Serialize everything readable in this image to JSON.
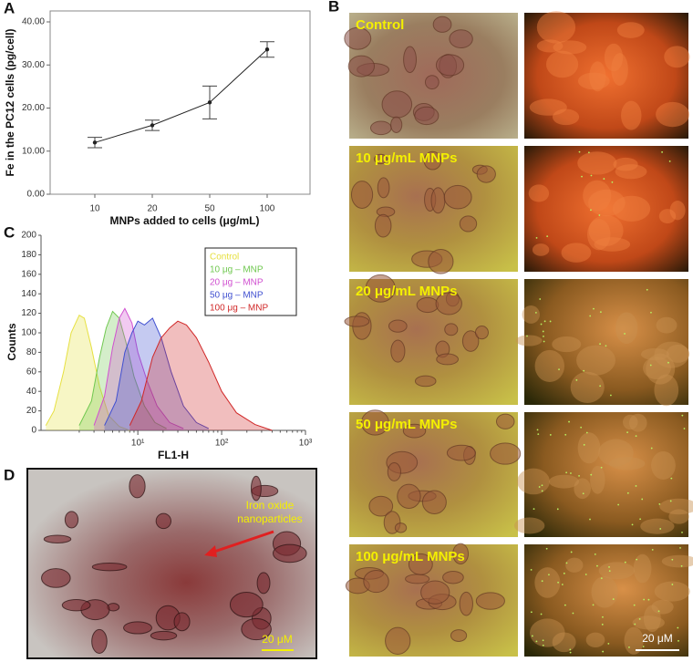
{
  "chart_data": [
    {
      "type": "line",
      "panel": "A",
      "categories": [
        "10",
        "20",
        "50",
        "100"
      ],
      "values": [
        12.0,
        16.0,
        21.3,
        33.6
      ],
      "errors": [
        1.2,
        1.2,
        3.8,
        1.8
      ],
      "color": "#222222",
      "ylim": [
        0,
        40
      ],
      "yticks": [
        {
          "value": 0,
          "label": "0.00"
        },
        {
          "value": 10,
          "label": "10.00"
        },
        {
          "value": 20,
          "label": "20.00"
        },
        {
          "value": 30,
          "label": "30.00"
        },
        {
          "value": 40,
          "label": "40.00"
        }
      ],
      "y_label": "Fe in the PC12 cells (pg/cell)",
      "x_label": "MNPs added to cells (μg/mL)"
    },
    {
      "type": "histogram-overlay",
      "panel": "C",
      "xscale": "log",
      "xlim": [
        0.7,
        1000
      ],
      "xticks": [
        {
          "value": 10,
          "label": "10¹"
        },
        {
          "value": 100,
          "label": "10²"
        },
        {
          "value": 1000,
          "label": "10³"
        }
      ],
      "ylim": [
        0,
        200
      ],
      "yticks": [
        0,
        20,
        40,
        60,
        80,
        100,
        120,
        140,
        160,
        180,
        200
      ],
      "y_label": "Counts",
      "x_label": "FL1-H",
      "series": [
        {
          "name": "Control",
          "color": "#e6e040",
          "x": [
            0.8,
            1.0,
            1.3,
            1.6,
            2.0,
            2.3,
            2.8,
            3.5,
            4.5,
            6,
            8
          ],
          "values": [
            5,
            20,
            60,
            100,
            118,
            115,
            85,
            45,
            15,
            4,
            0
          ]
        },
        {
          "name": "10 μg – MNP",
          "color": "#70c850",
          "x": [
            2,
            2.8,
            3.5,
            4.2,
            5,
            6,
            7.5,
            9,
            12,
            16,
            22
          ],
          "values": [
            5,
            30,
            75,
            105,
            122,
            115,
            85,
            55,
            25,
            8,
            2
          ]
        },
        {
          "name": "20 μg – MNP",
          "color": "#d050d0",
          "x": [
            3,
            4,
            5,
            6,
            7,
            8.5,
            10,
            13,
            17,
            24,
            35
          ],
          "values": [
            5,
            35,
            85,
            115,
            125,
            110,
            80,
            50,
            25,
            8,
            2
          ]
        },
        {
          "name": "50 μg – MNP",
          "color": "#4050d0",
          "x": [
            4,
            5.5,
            7,
            8.5,
            10,
            12,
            15,
            19,
            25,
            35,
            50,
            70
          ],
          "values": [
            5,
            30,
            80,
            100,
            112,
            108,
            115,
            95,
            60,
            25,
            8,
            2
          ]
        },
        {
          "name": "100 μg – MNP",
          "color": "#d02828",
          "x": [
            8,
            11,
            15,
            19,
            24,
            30,
            38,
            50,
            70,
            100,
            150,
            250,
            400
          ],
          "values": [
            5,
            30,
            75,
            95,
            105,
            112,
            108,
            95,
            70,
            40,
            18,
            6,
            0
          ]
        }
      ]
    }
  ],
  "panel_b": {
    "panel": "B",
    "rows": [
      "Control",
      "10 μg/mL MNPs",
      "20 μg/mL MNPs",
      "50 μg/mL MNPs",
      "100 μg/mL MNPs"
    ],
    "scale_bar": "20 μM"
  },
  "panel_d": {
    "panel": "D",
    "annotation_lines": [
      "Iron oxide",
      "nanoparticles"
    ],
    "scale_bar": "20 μM"
  }
}
